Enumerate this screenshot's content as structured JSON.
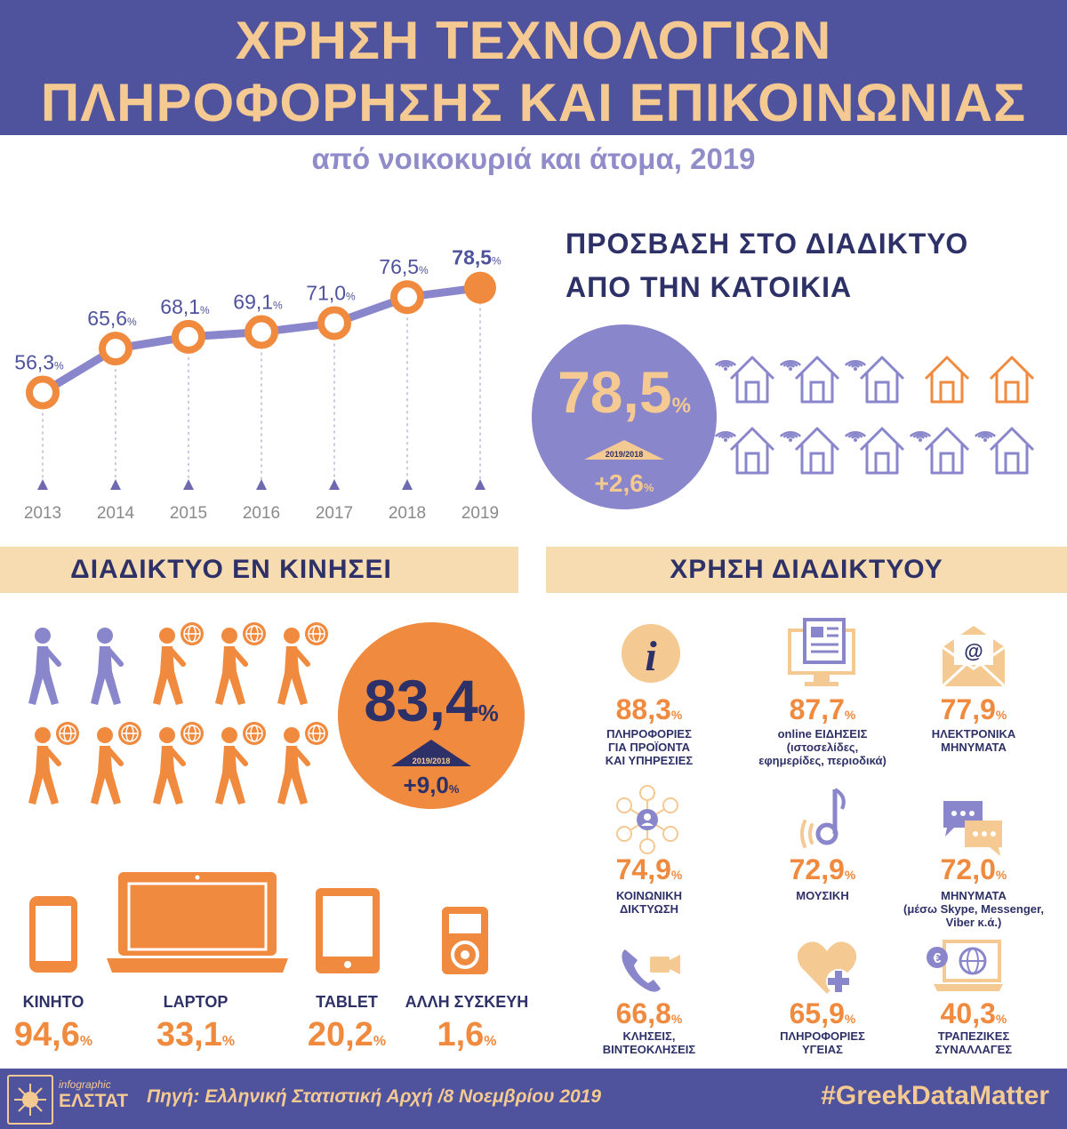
{
  "header": {
    "title_line1": "ΧΡΗΣΗ ΤΕΧΝΟΛΟΓΙΩΝ",
    "title_line2": "ΠΛΗΡΟΦΟΡΗΣΗΣ ΚΑΙ ΕΠΙΚΟΙΝΩΝΙΑΣ",
    "subtitle": "από νοικοκυριά και άτομα, 2019"
  },
  "colors": {
    "navy": "#4F539E",
    "dark": "#2E3167",
    "lavender": "#8A86CB",
    "orange": "#F08A3E",
    "peach": "#F6DCB0",
    "gold": "#F4C992"
  },
  "chart_data": {
    "type": "line",
    "x": [
      "2013",
      "2014",
      "2015",
      "2016",
      "2017",
      "2018",
      "2019"
    ],
    "values": [
      56.3,
      65.6,
      68.1,
      69.1,
      71.0,
      76.5,
      78.5
    ],
    "value_labels": [
      "56,3",
      "65,6",
      "68,1",
      "69,1",
      "71,0",
      "76,5",
      "78,5"
    ],
    "unit": "%",
    "ylim": [
      50,
      82
    ],
    "grid": false
  },
  "access": {
    "title_line1": "ΠΡΟΣΒΑΣΗ ΣΤΟ ΔΙΑΔΙΚΤΥΟ",
    "title_line2": "ΑΠΟ ΤΗΝ ΚΑΤΟΙΚΙΑ",
    "value": "78,5",
    "unit": "%",
    "change_period": "2019/2018",
    "change": "+2,6",
    "houses_total": 10,
    "houses_highlighted": 2
  },
  "mobile": {
    "title": "ΔΙΑΔΙΚΤΥΟ ΕΝ ΚΙΝΗΣΕΙ",
    "value": "83,4",
    "unit": "%",
    "change_period": "2019/2018",
    "change": "+9,0",
    "people_total": 10,
    "people_with_globe": 8
  },
  "devices": [
    {
      "label": "ΚΙΝΗΤΟ",
      "value": "94,6",
      "icon": "mobile-phone-icon"
    },
    {
      "label": "LAPTOP",
      "value": "33,1",
      "icon": "laptop-icon"
    },
    {
      "label": "TABLET",
      "value": "20,2",
      "icon": "tablet-icon"
    },
    {
      "label": "ΑΛΛΗ ΣΥΣΚΕΥΗ",
      "value": "1,6",
      "icon": "media-player-icon"
    }
  ],
  "usage": {
    "title": "ΧΡΗΣΗ ΔΙΑΔΙΚΤΥΟΥ",
    "items": [
      {
        "value": "88,3",
        "label": [
          "ΠΛΗΡΟΦΟΡΙΕΣ",
          "ΓΙΑ ΠΡΟΪΟΝΤΑ",
          "ΚΑΙ ΥΠΗΡΕΣΙΕΣ"
        ],
        "icon": "info-icon"
      },
      {
        "value": "87,7",
        "label": [
          "online ΕΙΔΗΣΕΙΣ",
          "(ιστοσελίδες,",
          "εφημερίδες, περιοδικά)"
        ],
        "icon": "news-monitor-icon"
      },
      {
        "value": "77,9",
        "label": [
          "ΗΛΕΚΤΡΟΝΙΚΑ",
          "ΜΗΝΥΜΑΤΑ"
        ],
        "icon": "email-icon"
      },
      {
        "value": "74,9",
        "label": [
          "ΚΟΙΝΩΝΙΚΗ",
          "ΔΙΚΤΥΩΣΗ"
        ],
        "icon": "social-network-icon"
      },
      {
        "value": "72,9",
        "label": [
          "ΜΟΥΣΙΚΗ"
        ],
        "icon": "music-icon"
      },
      {
        "value": "72,0",
        "label": [
          "ΜΗΝΥΜΑΤΑ",
          "(μέσω Skype, Messenger,",
          "Viber κ.ά.)"
        ],
        "icon": "chat-icon"
      },
      {
        "value": "66,8",
        "label": [
          "ΚΛΗΣΕΙΣ,",
          "ΒΙΝΤΕΟΚΛΗΣΕΙΣ"
        ],
        "icon": "video-call-icon"
      },
      {
        "value": "65,9",
        "label": [
          "ΠΛΗΡΟΦΟΡΙΕΣ",
          "ΥΓΕΙΑΣ"
        ],
        "icon": "health-icon"
      },
      {
        "value": "40,3",
        "label": [
          "ΤΡΑΠΕΖΙΚΕΣ",
          "ΣΥΝΑΛΛΑΓΕΣ"
        ],
        "icon": "banking-icon"
      }
    ]
  },
  "footer": {
    "logo_line1": "infographic",
    "logo_line2": "ΕΛΣΤΑΤ",
    "source": "Πηγή: Ελληνική Στατιστική Αρχή /8 Νοεμβρίου 2019",
    "hashtag": "#GreekDataMatter"
  }
}
